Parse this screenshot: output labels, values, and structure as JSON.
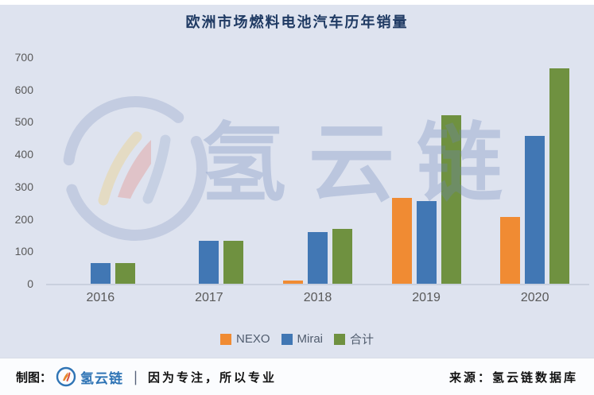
{
  "title": "欧洲市场燃料电池汽车历年销量",
  "chart_data": {
    "type": "bar",
    "title": "欧洲市场燃料电池汽车历年销量",
    "categories": [
      "2016",
      "2017",
      "2018",
      "2019",
      "2020"
    ],
    "series": [
      {
        "name": "NEXO",
        "color": "#f08b33",
        "values": [
          0,
          0,
          10,
          265,
          207
        ]
      },
      {
        "name": "Mirai",
        "color": "#4177b4",
        "values": [
          65,
          133,
          160,
          255,
          458
        ]
      },
      {
        "name": "合计",
        "color": "#6f9140",
        "values": [
          65,
          133,
          170,
          520,
          665
        ]
      }
    ],
    "xlabel": "",
    "ylabel": "",
    "ylim": [
      0,
      700
    ],
    "yticks": [
      "0",
      "100",
      "200",
      "300",
      "400",
      "500",
      "600",
      "700"
    ],
    "grid": false,
    "legend_position": "bottom"
  },
  "watermark": {
    "text": "氢云链",
    "logo": "hydrogen-cloud-chain-ring-logo"
  },
  "footer": {
    "made_by_label": "制图：",
    "brand": "氢云链",
    "separator": "｜",
    "slogan": "因为专注，所以专业",
    "source": "来源：氢云链数据库"
  },
  "colors": {
    "background": "#dee3ef",
    "title_text": "#1f3a63",
    "axis_text": "#595959",
    "baseline": "#c9d0de",
    "watermark": "#6d87ba",
    "footer_background": "#fbfcfe",
    "brand_blue": "#2f74b5",
    "nexo_orange": "#f08b33",
    "mirai_blue": "#4177b4",
    "total_green": "#6f9140"
  }
}
